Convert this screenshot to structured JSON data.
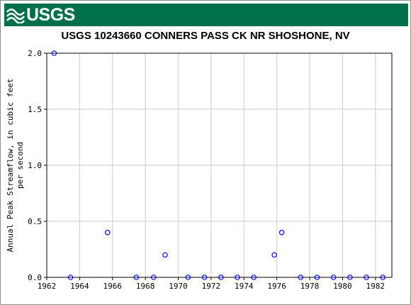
{
  "header": {
    "logo_text": "USGS",
    "logo_icon": "usgs-wave-icon",
    "banner_color": "#00704a"
  },
  "chart_data": {
    "type": "scatter",
    "title": "USGS 10243660 CONNERS PASS CK NR SHOSHONE, NV",
    "xlabel": "",
    "ylabel_lines": [
      "Annual Peak Streamflow, in cubic feet",
      "per second"
    ],
    "xlim": [
      1962,
      1983
    ],
    "ylim": [
      0,
      2.0
    ],
    "x_ticks": [
      1962,
      1964,
      1966,
      1968,
      1970,
      1972,
      1974,
      1976,
      1978,
      1980,
      1982
    ],
    "x_tick_labels": [
      "1962",
      "1964",
      "1966",
      "1968",
      "1970",
      "1972",
      "1974",
      "1976",
      "1978",
      "1980",
      "1982"
    ],
    "y_ticks": [
      0,
      0.5,
      1.0,
      1.5,
      2.0
    ],
    "y_tick_labels": [
      "0.0",
      "0.5",
      "1.0",
      "1.5",
      "2.0"
    ],
    "grid": true,
    "marker_color": "#0000ff",
    "series": [
      {
        "points": [
          {
            "x": 1962.45,
            "y": 2.0
          },
          {
            "x": 1963.45,
            "y": 0
          },
          {
            "x": 1965.7,
            "y": 0.4
          },
          {
            "x": 1967.45,
            "y": 0
          },
          {
            "x": 1968.5,
            "y": 0
          },
          {
            "x": 1969.2,
            "y": 0.2
          },
          {
            "x": 1970.6,
            "y": 0
          },
          {
            "x": 1971.6,
            "y": 0
          },
          {
            "x": 1972.6,
            "y": 0
          },
          {
            "x": 1973.6,
            "y": 0
          },
          {
            "x": 1974.6,
            "y": 0
          },
          {
            "x": 1975.85,
            "y": 0.2
          },
          {
            "x": 1976.3,
            "y": 0.4
          },
          {
            "x": 1977.45,
            "y": 0
          },
          {
            "x": 1978.45,
            "y": 0
          },
          {
            "x": 1979.45,
            "y": 0
          },
          {
            "x": 1980.45,
            "y": 0
          },
          {
            "x": 1981.45,
            "y": 0
          },
          {
            "x": 1982.45,
            "y": 0
          }
        ]
      }
    ]
  }
}
